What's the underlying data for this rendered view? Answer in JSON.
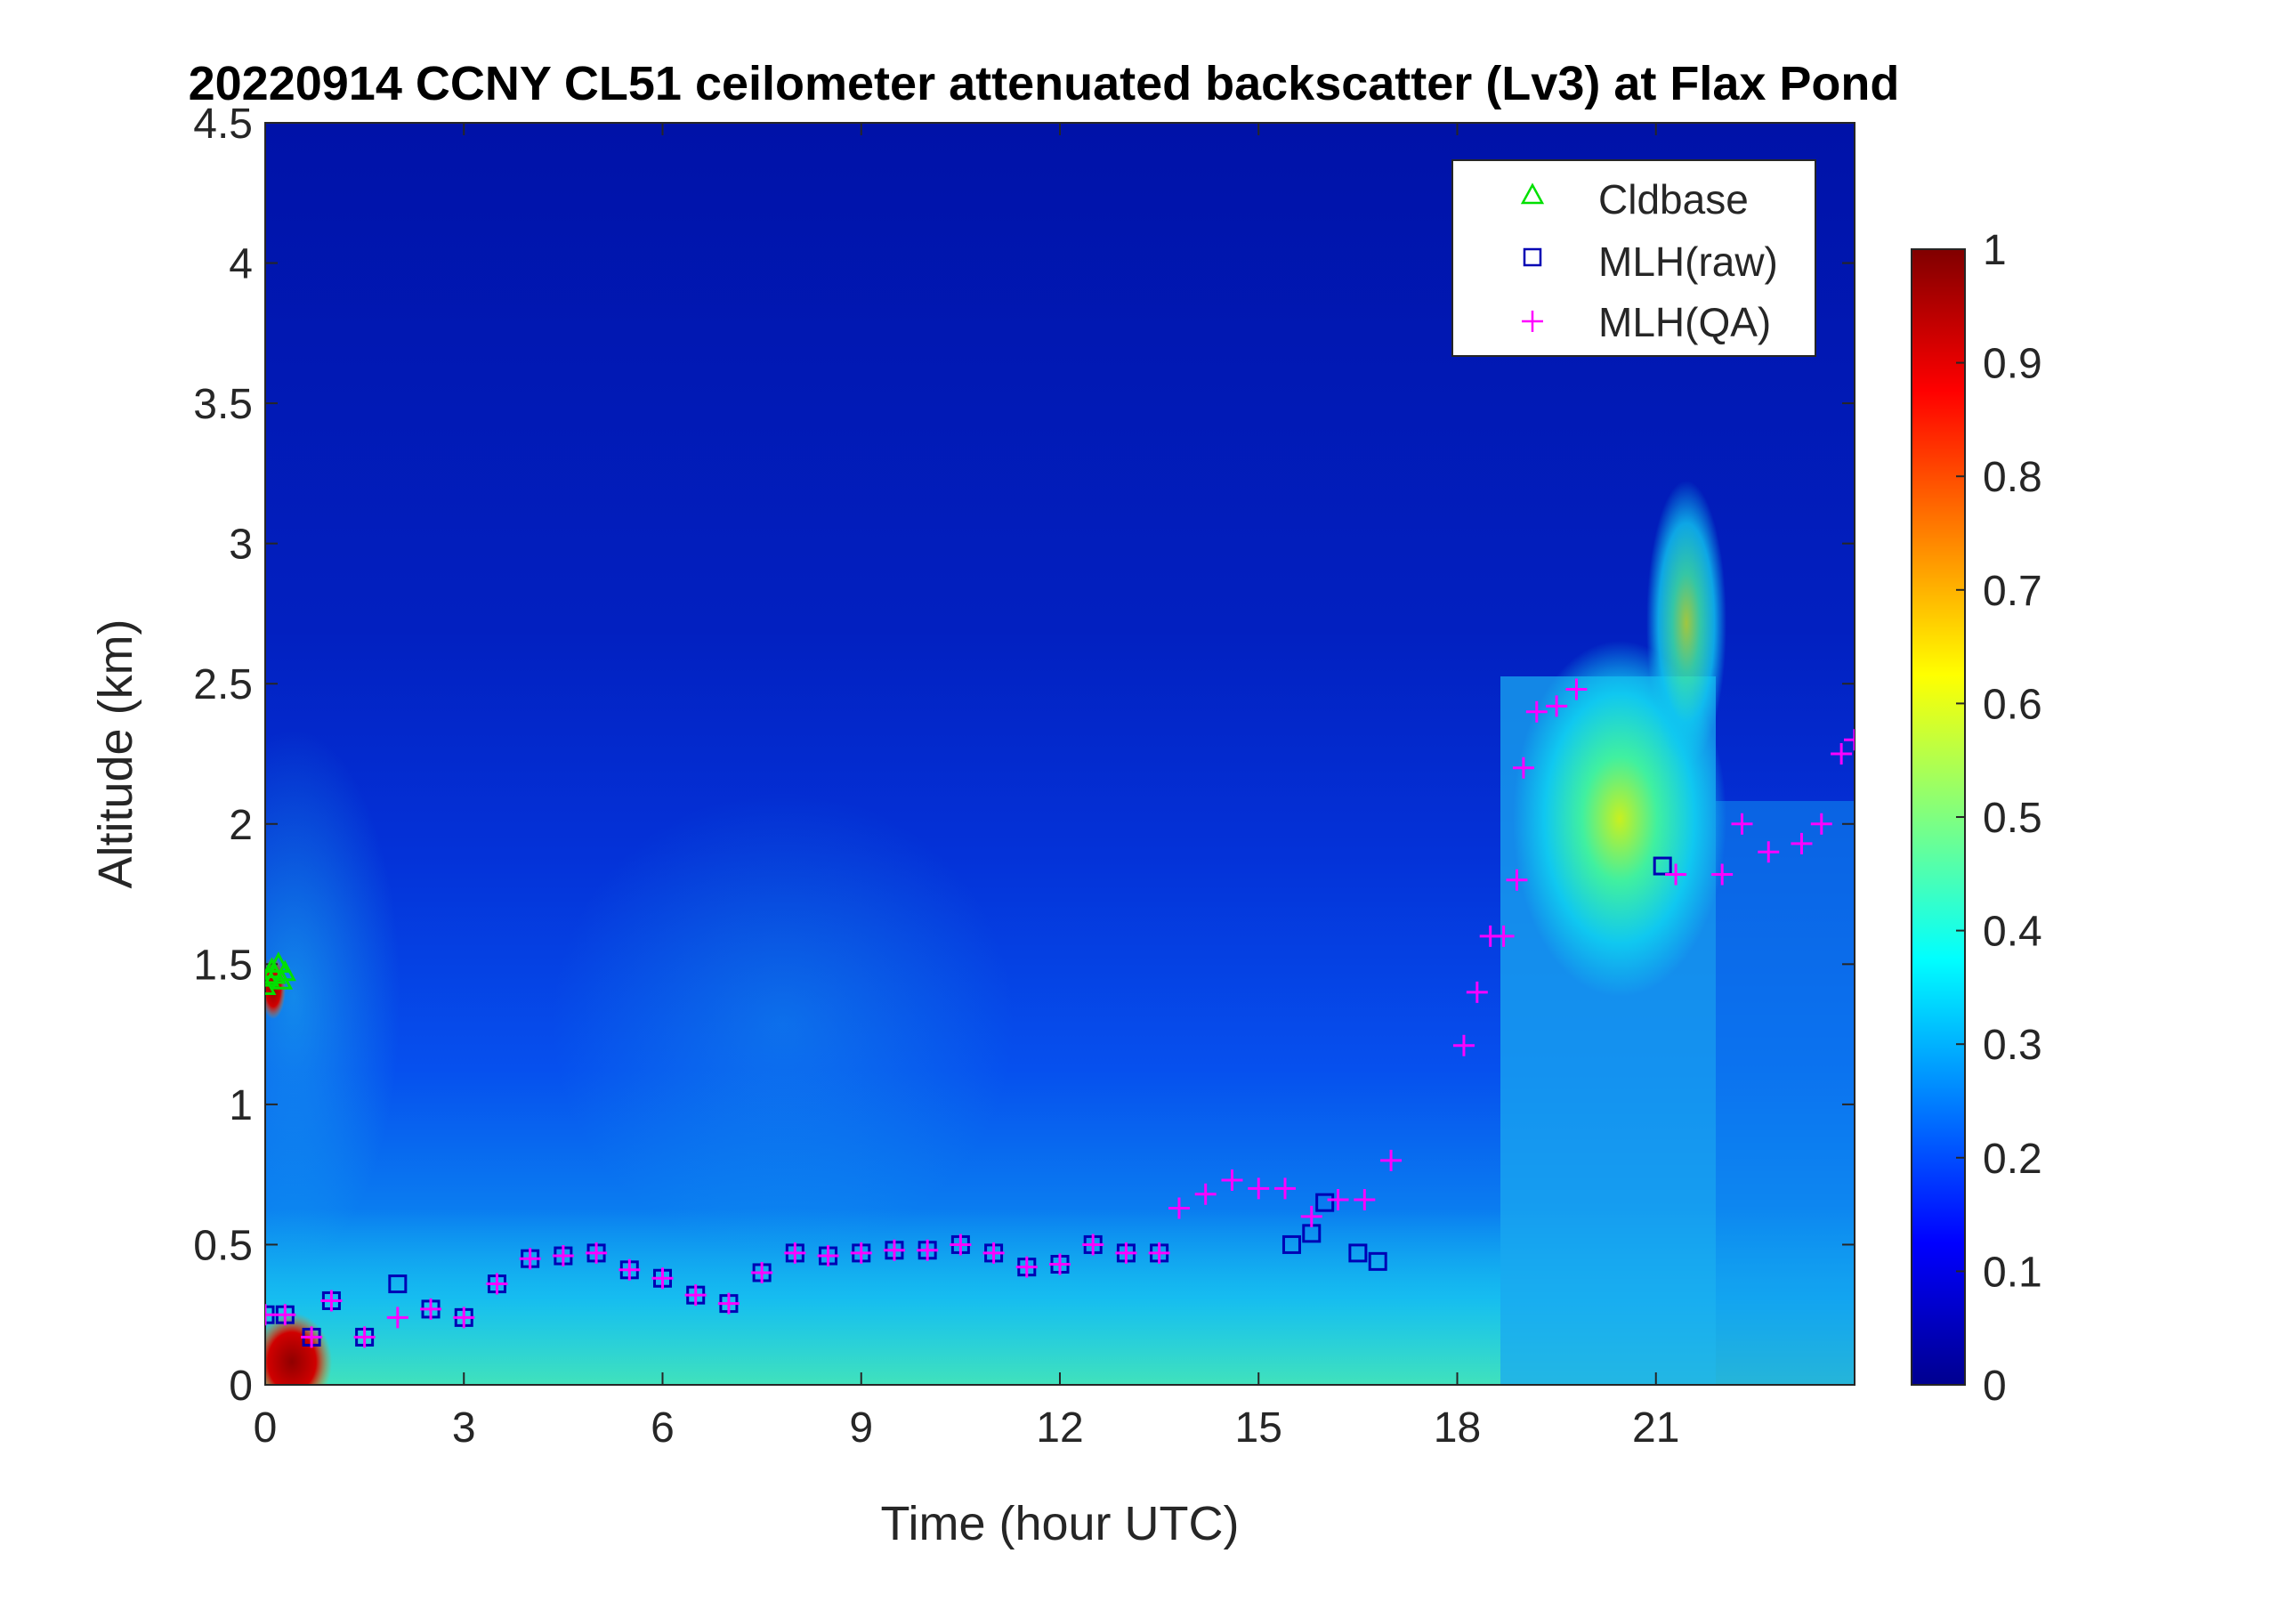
{
  "chart_data": {
    "type": "heatmap",
    "title": "20220914 CCNY CL51 ceilometer attenuated backscatter (Lv3) at Flax Pond",
    "xlabel": "Time (hour UTC)",
    "ylabel": "Altitude (km)",
    "xlim": [
      0,
      24
    ],
    "ylim": [
      0,
      4.5
    ],
    "x_ticks": [
      0,
      3,
      6,
      9,
      12,
      15,
      18,
      21
    ],
    "y_ticks": [
      0,
      0.5,
      1,
      1.5,
      2,
      2.5,
      3,
      3.5,
      4,
      4.5
    ],
    "colorbar": {
      "colormap": "jet",
      "range": [
        0,
        1
      ],
      "ticks": [
        0,
        0.1,
        0.2,
        0.3,
        0.4,
        0.5,
        0.6,
        0.7,
        0.8,
        0.9,
        1
      ]
    },
    "legend": {
      "placement": "top-right",
      "entries": [
        {
          "name": "Cldbase",
          "marker": "triangle",
          "color": "#00e000"
        },
        {
          "name": "MLH(raw)",
          "marker": "square",
          "color": "#0000b4"
        },
        {
          "name": "MLH(QA)",
          "marker": "plus",
          "color": "#ff00ff"
        }
      ]
    },
    "series": [
      {
        "name": "Cldbase",
        "x": [
          0.0,
          0.05,
          0.1,
          0.15,
          0.2,
          0.25,
          0.3
        ],
        "y": [
          1.42,
          1.45,
          1.48,
          1.46,
          1.5,
          1.44,
          1.47
        ]
      },
      {
        "name": "MLH(raw)",
        "x": [
          0.0,
          0.3,
          0.7,
          1.0,
          1.5,
          2.0,
          2.5,
          3.0,
          3.5,
          4.0,
          4.5,
          5.0,
          5.5,
          6.0,
          6.5,
          7.0,
          7.5,
          8.0,
          8.5,
          9.0,
          9.5,
          10.0,
          10.5,
          11.0,
          11.5,
          12.0,
          12.5,
          13.0,
          13.5,
          15.5,
          15.8,
          16.0,
          16.5,
          16.8,
          21.1
        ],
        "y": [
          0.25,
          0.25,
          0.17,
          0.3,
          0.17,
          0.36,
          0.27,
          0.24,
          0.36,
          0.45,
          0.46,
          0.47,
          0.41,
          0.38,
          0.32,
          0.29,
          0.4,
          0.47,
          0.46,
          0.47,
          0.48,
          0.48,
          0.5,
          0.47,
          0.42,
          0.43,
          0.5,
          0.47,
          0.47,
          0.5,
          0.54,
          0.65,
          0.47,
          0.44,
          1.85
        ]
      },
      {
        "name": "MLH(QA)",
        "x": [
          0.0,
          0.3,
          0.7,
          1.0,
          1.5,
          2.0,
          2.5,
          3.0,
          3.5,
          4.0,
          4.5,
          5.0,
          5.5,
          6.0,
          6.5,
          7.0,
          7.5,
          8.0,
          8.5,
          9.0,
          9.5,
          10.0,
          10.5,
          11.0,
          11.5,
          12.0,
          12.5,
          13.0,
          13.5,
          13.8,
          14.2,
          14.6,
          15.0,
          15.4,
          15.8,
          16.2,
          16.6,
          17.0,
          18.1,
          18.3,
          18.5,
          18.7,
          18.9,
          19.0,
          19.2,
          19.5,
          19.8,
          21.3,
          22.0,
          22.3,
          22.7,
          23.2,
          23.5,
          23.8,
          24.0
        ],
        "y": [
          0.25,
          0.25,
          0.17,
          0.3,
          0.17,
          0.24,
          0.27,
          0.24,
          0.36,
          0.45,
          0.46,
          0.47,
          0.41,
          0.38,
          0.32,
          0.29,
          0.4,
          0.47,
          0.46,
          0.47,
          0.48,
          0.48,
          0.5,
          0.47,
          0.42,
          0.43,
          0.5,
          0.47,
          0.47,
          0.63,
          0.68,
          0.73,
          0.7,
          0.7,
          0.6,
          0.66,
          0.66,
          0.8,
          1.21,
          1.4,
          1.6,
          1.6,
          1.8,
          2.2,
          2.4,
          2.42,
          2.48,
          1.82,
          1.82,
          2.0,
          1.9,
          1.93,
          2.0,
          2.25,
          2.3
        ]
      }
    ]
  }
}
